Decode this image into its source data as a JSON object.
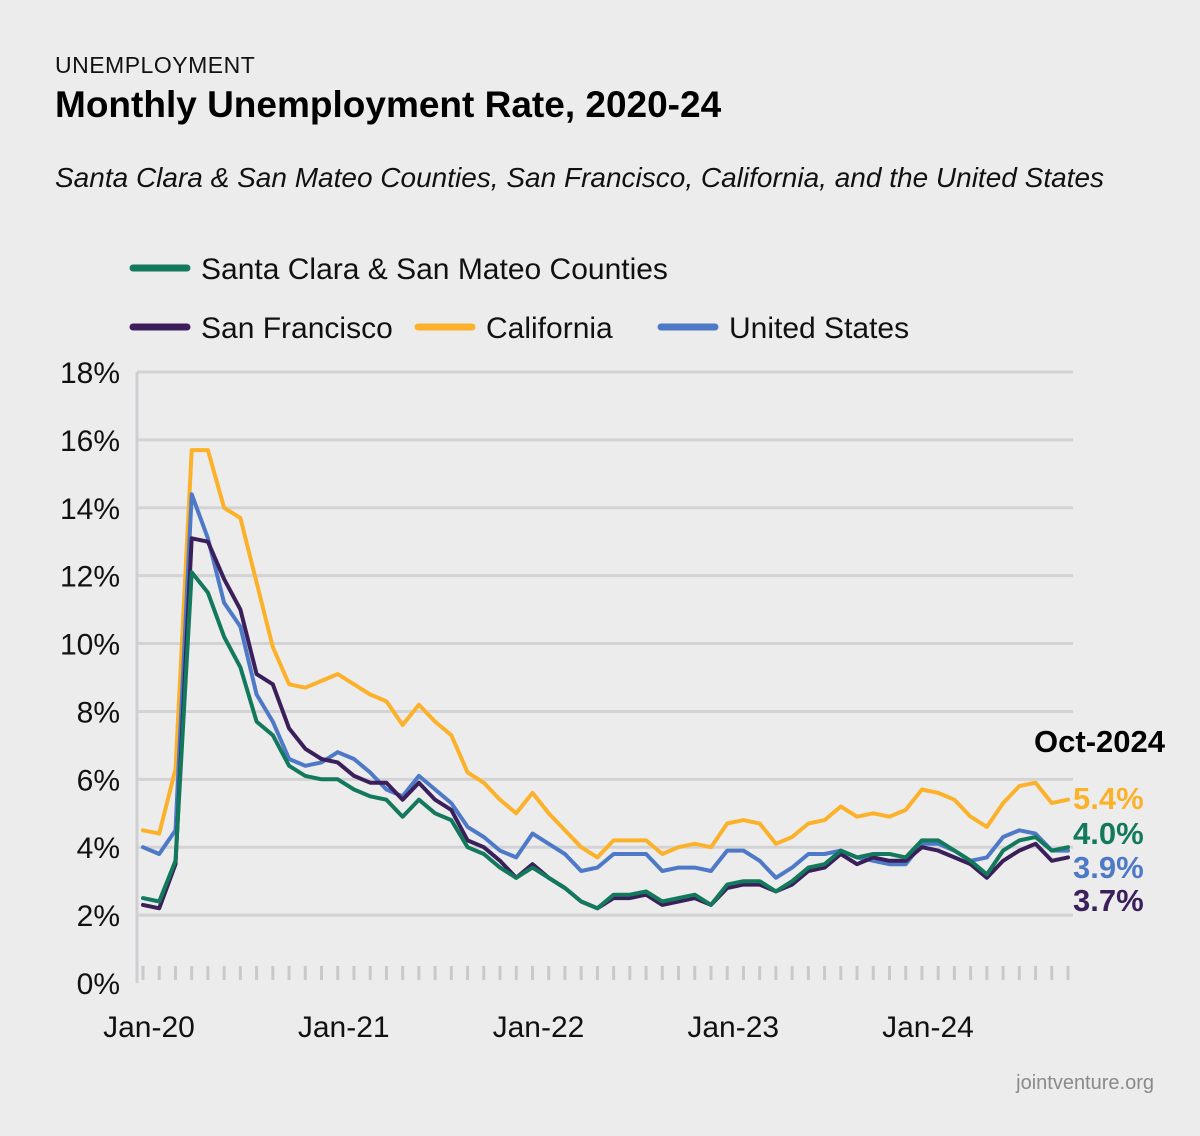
{
  "header": {
    "kicker": "UNEMPLOYMENT",
    "title": "Monthly Unemployment Rate, 2020-24",
    "subtitle": "Santa Clara & San Mateo Counties, San Francisco, California, and the United States"
  },
  "credit": "jointventure.org",
  "chart_data": {
    "type": "line",
    "title": "Monthly Unemployment Rate, 2020-24",
    "xlabel": "",
    "ylabel": "",
    "ylim": [
      0,
      18
    ],
    "yticks": [
      0,
      2,
      4,
      6,
      8,
      10,
      12,
      14,
      16,
      18
    ],
    "ytick_labels": [
      "0%",
      "2%",
      "4%",
      "6%",
      "8%",
      "10%",
      "12%",
      "14%",
      "16%",
      "18%"
    ],
    "grid": true,
    "legend_position": "top",
    "x_tick_labels": [
      "Jan-20",
      "Jan-21",
      "Jan-22",
      "Jan-23",
      "Jan-24"
    ],
    "x_tick_months": [
      0,
      12,
      24,
      36,
      48
    ],
    "months_count": 58,
    "end_label": "Oct-2024",
    "series": [
      {
        "name": "California",
        "color": "#fbb22a",
        "end_value_label": "5.4%",
        "values": [
          4.5,
          4.4,
          6.3,
          15.7,
          15.7,
          14.0,
          13.7,
          11.8,
          9.9,
          8.8,
          8.7,
          8.9,
          9.1,
          8.8,
          8.5,
          8.3,
          7.6,
          8.2,
          7.7,
          7.3,
          6.2,
          5.9,
          5.4,
          5.0,
          5.6,
          5.0,
          4.5,
          4.0,
          3.7,
          4.2,
          4.2,
          4.2,
          3.8,
          4.0,
          4.1,
          4.0,
          4.7,
          4.8,
          4.7,
          4.1,
          4.3,
          4.7,
          4.8,
          5.2,
          4.9,
          5.0,
          4.9,
          5.1,
          5.7,
          5.6,
          5.4,
          4.9,
          4.6,
          5.3,
          5.8,
          5.9,
          5.3,
          5.4
        ]
      },
      {
        "name": "United States",
        "color": "#4d79c6",
        "end_value_label": "3.9%",
        "values": [
          4.0,
          3.8,
          4.5,
          14.4,
          13.1,
          11.2,
          10.5,
          8.5,
          7.7,
          6.6,
          6.4,
          6.5,
          6.8,
          6.6,
          6.2,
          5.7,
          5.5,
          6.1,
          5.7,
          5.3,
          4.6,
          4.3,
          3.9,
          3.7,
          4.4,
          4.1,
          3.8,
          3.3,
          3.4,
          3.8,
          3.8,
          3.8,
          3.3,
          3.4,
          3.4,
          3.3,
          3.9,
          3.9,
          3.6,
          3.1,
          3.4,
          3.8,
          3.8,
          3.9,
          3.7,
          3.6,
          3.5,
          3.5,
          4.1,
          4.1,
          3.9,
          3.6,
          3.7,
          4.3,
          4.5,
          4.4,
          3.9,
          3.9
        ]
      },
      {
        "name": "San Francisco",
        "color": "#3b1f5a",
        "end_value_label": "3.7%",
        "values": [
          2.3,
          2.2,
          3.5,
          13.1,
          13.0,
          11.9,
          11.0,
          9.1,
          8.8,
          7.5,
          6.9,
          6.6,
          6.5,
          6.1,
          5.9,
          5.9,
          5.4,
          5.9,
          5.4,
          5.1,
          4.2,
          4.0,
          3.6,
          3.1,
          3.5,
          3.1,
          2.8,
          2.4,
          2.2,
          2.5,
          2.5,
          2.6,
          2.3,
          2.4,
          2.5,
          2.3,
          2.8,
          2.9,
          2.9,
          2.7,
          2.9,
          3.3,
          3.4,
          3.8,
          3.5,
          3.7,
          3.6,
          3.6,
          4.0,
          3.9,
          3.7,
          3.5,
          3.1,
          3.6,
          3.9,
          4.1,
          3.6,
          3.7
        ]
      },
      {
        "name": "Santa Clara & San Mateo Counties",
        "color": "#12795c",
        "end_value_label": "4.0%",
        "values": [
          2.5,
          2.4,
          3.6,
          12.1,
          11.5,
          10.2,
          9.3,
          7.7,
          7.3,
          6.4,
          6.1,
          6.0,
          6.0,
          5.7,
          5.5,
          5.4,
          4.9,
          5.4,
          5.0,
          4.8,
          4.0,
          3.8,
          3.4,
          3.1,
          3.4,
          3.1,
          2.8,
          2.4,
          2.2,
          2.6,
          2.6,
          2.7,
          2.4,
          2.5,
          2.6,
          2.3,
          2.9,
          3.0,
          3.0,
          2.7,
          3.0,
          3.4,
          3.5,
          3.9,
          3.7,
          3.8,
          3.8,
          3.7,
          4.2,
          4.2,
          3.9,
          3.6,
          3.2,
          3.9,
          4.2,
          4.3,
          3.9,
          4.0
        ]
      }
    ],
    "legend": [
      {
        "name": "Santa Clara & San Mateo Counties",
        "color": "#12795c"
      },
      {
        "name": "San Francisco",
        "color": "#3b1f5a"
      },
      {
        "name": "California",
        "color": "#fbb22a"
      },
      {
        "name": "United States",
        "color": "#4d79c6"
      }
    ]
  }
}
